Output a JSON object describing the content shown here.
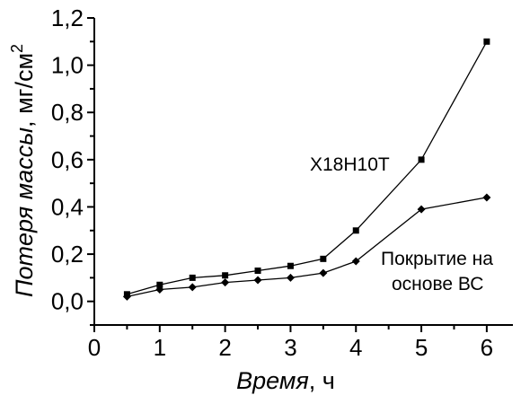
{
  "chart_data": {
    "type": "line",
    "xlabel_italic": "Время",
    "xlabel_unit": ", ч",
    "ylabel_italic": "Потеря массы",
    "ylabel_unit": ", мг/см",
    "ylabel_sup": "2",
    "xlim": [
      0,
      6.4
    ],
    "ylim": [
      -0.1,
      1.2
    ],
    "xticks": [
      0,
      1,
      2,
      3,
      4,
      5,
      6
    ],
    "xtick_labels": [
      "0",
      "1",
      "2",
      "3",
      "4",
      "5",
      "6"
    ],
    "yticks": [
      0.0,
      0.2,
      0.4,
      0.6,
      0.8,
      1.0,
      1.2
    ],
    "ytick_labels": [
      "0,0",
      "0,2",
      "0,4",
      "0,6",
      "0,8",
      "1,0",
      "1,2"
    ],
    "grid": false,
    "series": [
      {
        "name": "Х18Н10Т",
        "marker": "square",
        "x": [
          0.5,
          1.0,
          1.5,
          2.0,
          2.5,
          3.0,
          3.5,
          4.0,
          5.0,
          6.0
        ],
        "y": [
          0.03,
          0.07,
          0.1,
          0.11,
          0.13,
          0.15,
          0.18,
          0.3,
          0.6,
          1.1
        ]
      },
      {
        "name_line1": "Покрытие на",
        "name_line2": "основе ВС",
        "marker": "diamond",
        "x": [
          0.5,
          1.0,
          1.5,
          2.0,
          2.5,
          3.0,
          3.5,
          4.0,
          5.0,
          6.0
        ],
        "y": [
          0.02,
          0.05,
          0.06,
          0.08,
          0.09,
          0.1,
          0.12,
          0.17,
          0.39,
          0.44
        ]
      }
    ]
  }
}
